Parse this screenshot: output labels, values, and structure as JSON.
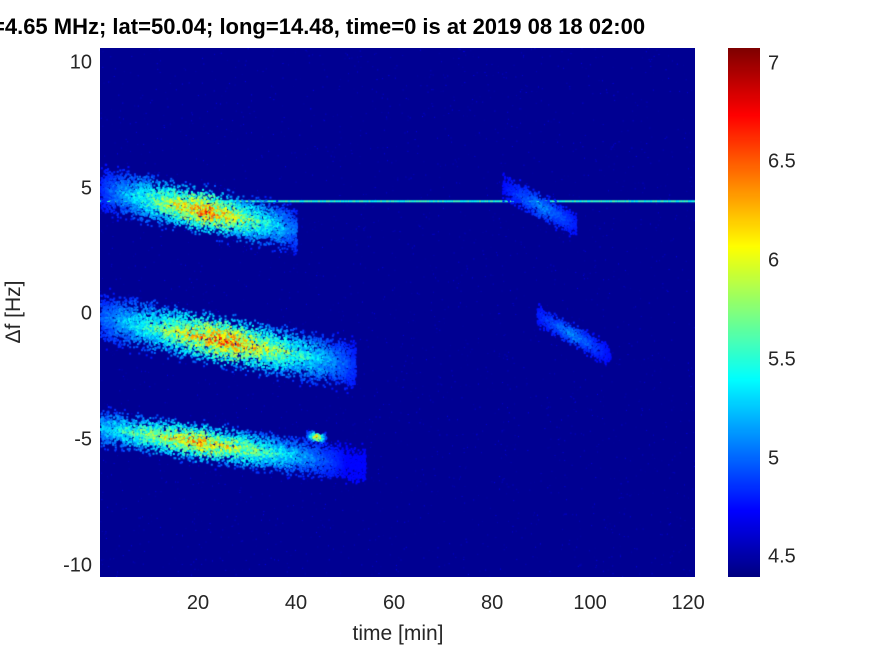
{
  "chart_data": {
    "type": "heatmap",
    "title": "=4.65 MHz;  lat=50.04; long=14.48, time=0 is at 2019 08 18 02:00",
    "xlabel": "time [min]",
    "ylabel": "Δf [Hz]",
    "xlim": [
      0,
      121.4
    ],
    "ylim": [
      -10.45,
      10.6
    ],
    "xticks": [
      "20",
      "40",
      "60",
      "80",
      "100",
      "120"
    ],
    "xtick_values": [
      20,
      40,
      60,
      80,
      100,
      120
    ],
    "yticks": [
      "10",
      "5",
      "0",
      "-5",
      "-10"
    ],
    "ytick_values": [
      10,
      5,
      0,
      -5,
      -10
    ],
    "colorbar": {
      "colormap": "jet",
      "clim": [
        4.4,
        7.08
      ],
      "ticks": [
        "7",
        "6.5",
        "6",
        "5.5",
        "5",
        "4.5"
      ],
      "tick_values": [
        7,
        6.5,
        6,
        5.5,
        5,
        4.5
      ]
    },
    "background_value": 4.45,
    "features": [
      {
        "name": "carrier-line",
        "type": "line",
        "f": 4.5,
        "t": [
          0,
          121
        ],
        "value": 5.5
      },
      {
        "name": "trace-upper",
        "t": [
          0,
          40
        ],
        "f_start": 5.0,
        "f_end": 3.4,
        "width": 1.2,
        "peak_t": 21,
        "peak_value": 6.8
      },
      {
        "name": "trace-middle",
        "t": [
          0,
          52
        ],
        "f_start": -0.1,
        "f_end": -2.0,
        "width": 1.3,
        "peak_t": 25,
        "peak_value": 6.8
      },
      {
        "name": "trace-lower",
        "t": [
          0,
          54
        ],
        "f_start": -4.5,
        "f_end": -6.0,
        "width": 1.0,
        "peak_t": 20,
        "peak_value": 6.6
      },
      {
        "name": "spot-lower",
        "t": [
          42,
          46
        ],
        "f_start": -4.8,
        "f_end": -4.9,
        "width": 0.3,
        "peak_t": 44,
        "peak_value": 6.7
      },
      {
        "name": "echo-upper",
        "t": [
          82,
          97
        ],
        "f_start": 5.1,
        "f_end": 3.6,
        "width": 0.7,
        "peak_t": 90,
        "peak_value": 5.2
      },
      {
        "name": "echo-middle",
        "t": [
          89,
          104
        ],
        "f_start": 0.0,
        "f_end": -1.6,
        "width": 0.6,
        "peak_t": 96,
        "peak_value": 5.2
      }
    ]
  }
}
